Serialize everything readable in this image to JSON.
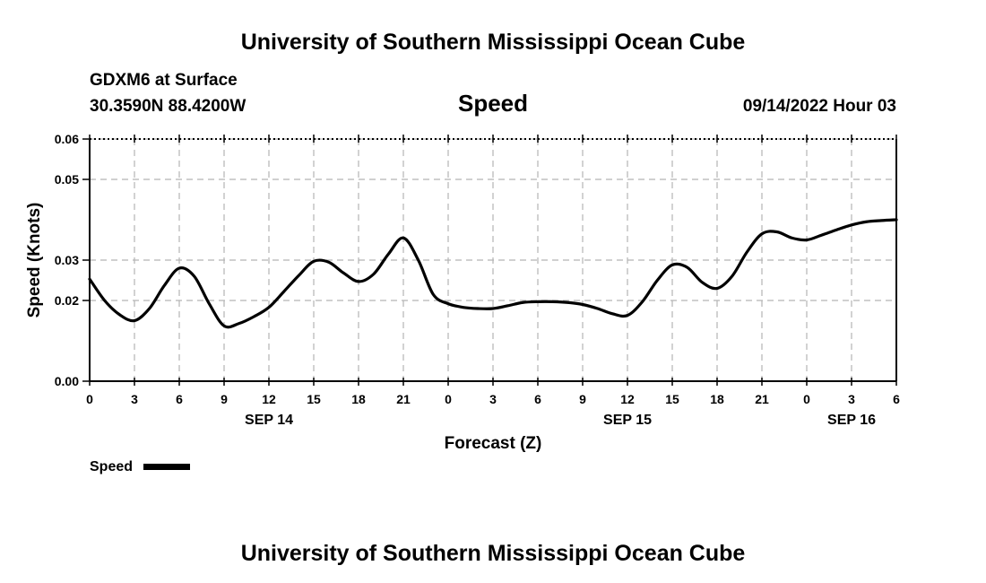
{
  "title": "University of Southern Mississippi Ocean Cube",
  "footer_title": "University of Southern Mississippi Ocean Cube",
  "station": "GDXM6 at Surface",
  "coords": "30.3590N  88.4200W",
  "parameter": "Speed",
  "timestamp": "09/14/2022 Hour 03",
  "legend": {
    "label": "Speed",
    "color": "#000000"
  },
  "chart_data": {
    "type": "line",
    "title": "Speed",
    "xlabel": "Forecast (Z)",
    "ylabel": "Speed (Knots)",
    "xlim": [
      0,
      54
    ],
    "ylim": [
      0,
      0.06
    ],
    "grid": true,
    "x_ticks": [
      {
        "x": 0,
        "label": "0"
      },
      {
        "x": 3,
        "label": "3"
      },
      {
        "x": 6,
        "label": "6"
      },
      {
        "x": 9,
        "label": "9"
      },
      {
        "x": 12,
        "label": "12"
      },
      {
        "x": 15,
        "label": "15"
      },
      {
        "x": 18,
        "label": "18"
      },
      {
        "x": 21,
        "label": "21"
      },
      {
        "x": 24,
        "label": "0"
      },
      {
        "x": 27,
        "label": "3"
      },
      {
        "x": 30,
        "label": "6"
      },
      {
        "x": 33,
        "label": "9"
      },
      {
        "x": 36,
        "label": "12"
      },
      {
        "x": 39,
        "label": "15"
      },
      {
        "x": 42,
        "label": "18"
      },
      {
        "x": 45,
        "label": "21"
      },
      {
        "x": 48,
        "label": "0"
      },
      {
        "x": 51,
        "label": "3"
      },
      {
        "x": 54,
        "label": "6"
      }
    ],
    "y_ticks": [
      {
        "y": 0,
        "label": "0.00"
      },
      {
        "y": 0.02,
        "label": "0.02"
      },
      {
        "y": 0.03,
        "label": "0.03"
      },
      {
        "y": 0.05,
        "label": "0.05"
      },
      {
        "y": 0.06,
        "label": "0.06"
      }
    ],
    "day_labels": [
      {
        "x": 12,
        "label": "SEP 14"
      },
      {
        "x": 36,
        "label": "SEP 15"
      },
      {
        "x": 51,
        "label": "SEP 16"
      }
    ],
    "series": [
      {
        "name": "Speed",
        "x": [
          0,
          1,
          2,
          3,
          4,
          5,
          6,
          7,
          8,
          9,
          10,
          11,
          12,
          13,
          14,
          15,
          16,
          17,
          18,
          19,
          20,
          21,
          22,
          23,
          24,
          25,
          26,
          27,
          28,
          29,
          30,
          31,
          32,
          33,
          34,
          35,
          36,
          37,
          38,
          39,
          40,
          41,
          42,
          43,
          44,
          45,
          46,
          47,
          48,
          49,
          50,
          51,
          52,
          53,
          54
        ],
        "values": [
          0.0253,
          0.02,
          0.0165,
          0.015,
          0.018,
          0.0237,
          0.028,
          0.026,
          0.0192,
          0.0137,
          0.0143,
          0.016,
          0.0183,
          0.0222,
          0.0262,
          0.0297,
          0.0295,
          0.0268,
          0.0247,
          0.0265,
          0.0315,
          0.0355,
          0.03,
          0.0215,
          0.0192,
          0.0183,
          0.018,
          0.018,
          0.0187,
          0.0195,
          0.0197,
          0.0197,
          0.0195,
          0.019,
          0.018,
          0.0167,
          0.0163,
          0.0197,
          0.025,
          0.0288,
          0.0282,
          0.0245,
          0.023,
          0.026,
          0.032,
          0.0365,
          0.037,
          0.0355,
          0.035,
          0.0362,
          0.0375,
          0.0387,
          0.0395,
          0.0398,
          0.04
        ]
      }
    ]
  }
}
